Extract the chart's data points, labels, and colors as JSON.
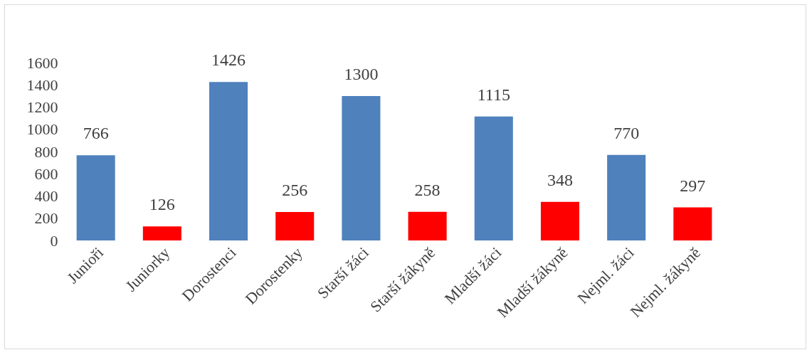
{
  "chart_data": {
    "type": "bar",
    "categories": [
      "Junioři",
      "Juniorky",
      "Dorostenci",
      "Dorostenky",
      "Starší žáci",
      "Starší žákyně",
      "Mladší žáci",
      "Mladší žákyně",
      "Nejml. žáci",
      "Nejml. žákyně"
    ],
    "values": [
      766,
      126,
      1426,
      256,
      1300,
      258,
      1115,
      348,
      770,
      297
    ],
    "colors": [
      "#4f81bd",
      "#ff0000",
      "#4f81bd",
      "#ff0000",
      "#4f81bd",
      "#ff0000",
      "#4f81bd",
      "#ff0000",
      "#4f81bd",
      "#ff0000"
    ],
    "ylim": [
      0,
      1600
    ],
    "yticks": [
      0,
      200,
      400,
      600,
      800,
      1000,
      1200,
      1400,
      1600
    ],
    "grid": false,
    "data_labels": true
  }
}
